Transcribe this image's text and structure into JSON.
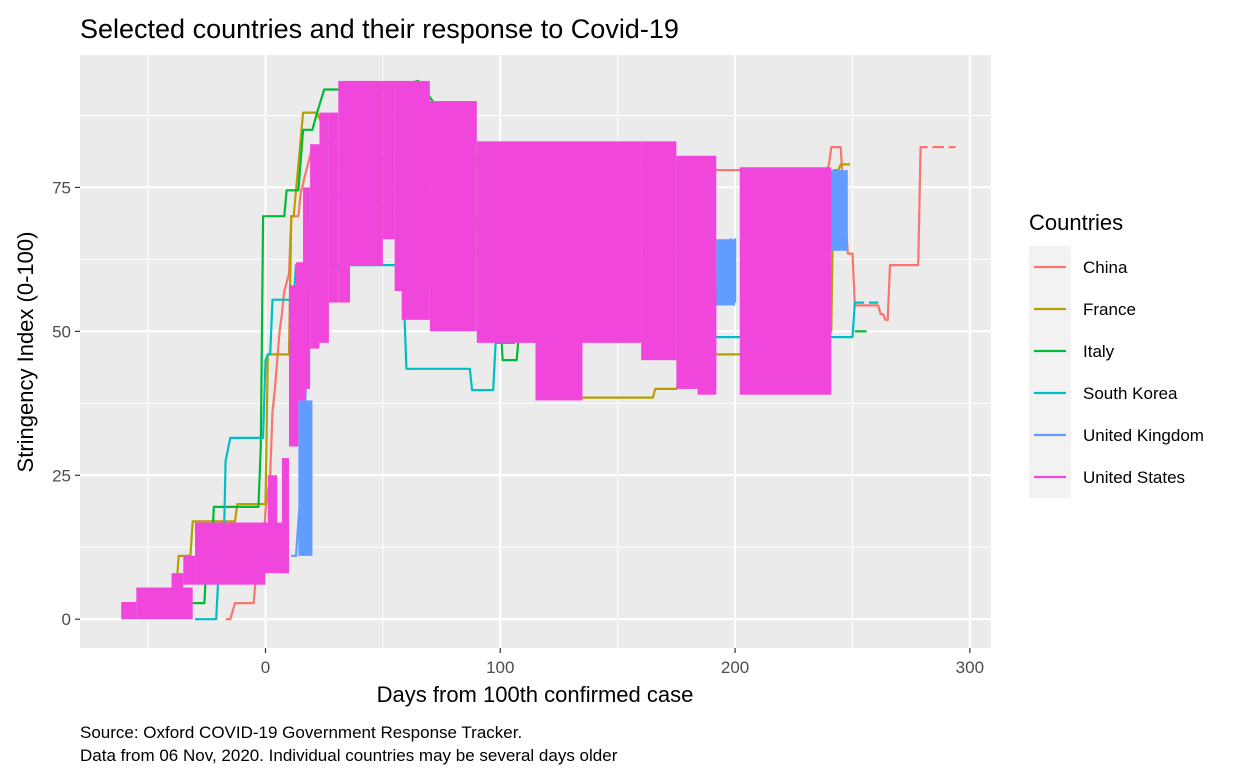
{
  "chart_data": {
    "type": "line",
    "title": "Selected countries and their response to Covid-19",
    "xlabel": "Days from 100th confirmed case",
    "ylabel": "Stringency Index (0-100)",
    "xlim": [
      -79,
      309
    ],
    "ylim": [
      -5,
      98
    ],
    "x_ticks": [
      0,
      100,
      200,
      300
    ],
    "x_tick_labels": [
      "0",
      "100",
      "200",
      "300"
    ],
    "y_ticks": [
      0,
      25,
      50,
      75
    ],
    "y_tick_labels": [
      "0",
      "25",
      "50",
      "75"
    ],
    "grid": true,
    "legend": {
      "title": "Countries",
      "position": "right"
    },
    "caption": [
      "Source: Oxford COVID-19 Government Response Tracker.",
      "Data from 06 Nov, 2020. Individual countries may be several days older"
    ],
    "series": [
      {
        "name": "China",
        "color": "#F8766D",
        "segments": [
          [
            [
              -17,
              0
            ],
            [
              -15,
              0
            ],
            [
              -13,
              2.8
            ],
            [
              -5,
              2.8
            ],
            [
              -4,
              8
            ],
            [
              -1,
              10
            ],
            [
              0,
              19
            ],
            [
              2,
              25
            ],
            [
              3,
              36
            ],
            [
              4,
              40
            ],
            [
              5,
              45
            ],
            [
              6,
              50
            ],
            [
              7,
              53
            ],
            [
              8,
              57
            ],
            [
              10,
              60
            ],
            [
              11,
              70
            ],
            [
              14,
              70
            ],
            [
              15,
              74
            ],
            [
              18,
              79
            ],
            [
              20,
              82
            ],
            [
              22,
              82
            ],
            [
              24,
              79
            ],
            [
              190,
              79
            ],
            [
              191,
              78
            ],
            [
              239,
              78
            ],
            [
              240,
              79
            ],
            [
              241,
              82
            ],
            [
              245,
              82
            ],
            [
              246,
              75
            ],
            [
              247,
              70
            ],
            [
              248,
              63.5
            ],
            [
              250,
              63.5
            ],
            [
              251,
              54.5
            ],
            [
              261,
              54.5
            ],
            [
              262,
              53
            ],
            [
              263,
              53
            ],
            [
              264,
              52
            ],
            [
              265,
              52
            ],
            [
              266,
              61.5
            ],
            [
              278,
              61.5
            ],
            [
              279,
              82
            ],
            [
              282,
              82
            ]
          ],
          [
            [
              284,
              82
            ],
            [
              289,
              82
            ]
          ],
          [
            [
              291,
              82
            ],
            [
              294,
              82
            ]
          ]
        ]
      },
      {
        "name": "France",
        "color": "#B79F00",
        "segments": [
          [
            [
              -38,
              5
            ],
            [
              -37,
              11
            ],
            [
              -32,
              11
            ],
            [
              -31,
              17
            ],
            [
              -13,
              17
            ],
            [
              -12,
              20
            ],
            [
              0,
              20
            ],
            [
              1,
              46
            ],
            [
              10,
              46
            ],
            [
              11,
              70
            ],
            [
              12,
              70
            ],
            [
              16,
              88
            ],
            [
              22,
              88
            ],
            [
              30,
              80
            ],
            [
              120,
              80
            ],
            [
              118,
              41
            ],
            [
              125,
              41
            ],
            [
              126,
              38.5
            ],
            [
              165,
              38.5
            ],
            [
              166,
              40
            ],
            [
              175,
              40
            ],
            [
              176,
              41
            ],
            [
              190,
              41
            ],
            [
              191,
              46
            ],
            [
              238,
              46
            ],
            [
              239,
              50
            ],
            [
              241,
              50
            ],
            [
              242,
              78
            ],
            [
              244,
              78
            ],
            [
              245,
              79
            ],
            [
              249,
              79
            ]
          ]
        ]
      },
      {
        "name": "Italy",
        "color": "#00BA38",
        "segments": [
          [
            [
              -31,
              2.8
            ],
            [
              -26,
              2.8
            ],
            [
              -25,
              11
            ],
            [
              -23,
              11
            ],
            [
              -22,
              19.5
            ],
            [
              -3,
              19.5
            ],
            [
              -2,
              30
            ],
            [
              -1,
              70
            ],
            [
              8,
              70
            ],
            [
              9,
              74.5
            ],
            [
              14,
              74.5
            ],
            [
              16,
              85
            ],
            [
              20,
              85
            ],
            [
              22,
              88
            ],
            [
              25,
              92
            ],
            [
              50,
              92
            ],
            [
              65,
              93.5
            ],
            [
              80,
              85
            ],
            [
              100,
              53
            ],
            [
              101,
              45
            ],
            [
              107,
              45
            ],
            [
              108,
              50
            ],
            [
              110,
              50
            ]
          ],
          [
            [
              251,
              50
            ],
            [
              256,
              50
            ]
          ]
        ]
      },
      {
        "name": "South Korea",
        "color": "#00BFC4",
        "segments": [
          [
            [
              -30,
              0
            ],
            [
              -21,
              0
            ],
            [
              -20,
              8
            ],
            [
              -18,
              8
            ],
            [
              -17,
              27.5
            ],
            [
              -15,
              31.5
            ],
            [
              -1,
              31.5
            ],
            [
              0,
              45
            ],
            [
              1,
              46
            ],
            [
              2,
              46
            ],
            [
              3,
              55.5
            ],
            [
              12,
              55.5
            ],
            [
              13,
              61.5
            ],
            [
              22,
              61.5
            ],
            [
              58,
              61.5
            ],
            [
              59,
              55
            ],
            [
              60,
              43.5
            ],
            [
              87,
              43.5
            ],
            [
              88,
              39.8
            ],
            [
              97,
              39.8
            ],
            [
              98,
              48
            ],
            [
              106,
              48
            ],
            [
              107,
              49
            ],
            [
              250,
              49
            ],
            [
              251,
              55
            ],
            [
              255,
              55
            ]
          ],
          [
            [
              257,
              55
            ],
            [
              261,
              55
            ]
          ]
        ]
      },
      {
        "name": "United Kingdom",
        "color": "#619CFF",
        "segments": [
          [
            [
              11,
              11
            ],
            [
              13,
              11
            ],
            [
              14,
              17
            ],
            [
              15,
              22
            ],
            [
              16,
              30
            ],
            [
              17,
              38
            ],
            [
              18,
              50
            ],
            [
              20,
              74
            ],
            [
              34,
              74
            ],
            [
              60,
              70
            ],
            [
              68,
              70
            ],
            [
              70,
              64
            ],
            [
              190,
              64
            ],
            [
              191,
              55
            ],
            [
              198,
              66
            ],
            [
              199,
              55
            ],
            [
              200,
              66
            ],
            [
              200,
              55
            ]
          ]
        ],
        "bands": [
          {
            "x0": 14,
            "x1": 20,
            "y0": 11,
            "y1": 38
          },
          {
            "x0": 192,
            "x1": 200,
            "y0": 54.5,
            "y1": 66
          },
          {
            "x0": 238,
            "x1": 248,
            "y0": 64,
            "y1": 78
          }
        ]
      },
      {
        "name": "United States",
        "color": "#F046DC",
        "segments": [
          [
            [
              -61,
              0
            ],
            [
              -61,
              2.8
            ],
            [
              -55,
              2.8
            ]
          ]
        ],
        "bands": [
          {
            "x0": -61,
            "x1": -55,
            "y0": 0,
            "y1": 2.8
          },
          {
            "x0": -55,
            "x1": -31,
            "y0": 0,
            "y1": 5.5
          },
          {
            "x0": -40,
            "x1": -35,
            "y0": 5,
            "y1": 8
          },
          {
            "x0": -35,
            "x1": -30,
            "y0": 6,
            "y1": 11
          },
          {
            "x0": -30,
            "x1": 0,
            "y0": 6,
            "y1": 16.8
          },
          {
            "x0": -2,
            "x1": 10,
            "y0": 8,
            "y1": 16.8
          },
          {
            "x0": 1,
            "x1": 5,
            "y0": 12,
            "y1": 25
          },
          {
            "x0": 7,
            "x1": 10,
            "y0": 8,
            "y1": 28
          },
          {
            "x0": 10,
            "x1": 14,
            "y0": 30,
            "y1": 58
          },
          {
            "x0": 13,
            "x1": 17,
            "y0": 38,
            "y1": 62
          },
          {
            "x0": 16,
            "x1": 19,
            "y0": 40,
            "y1": 75
          },
          {
            "x0": 19,
            "x1": 23,
            "y0": 47,
            "y1": 82.5
          },
          {
            "x0": 23,
            "x1": 27,
            "y0": 48,
            "y1": 88
          },
          {
            "x0": 27,
            "x1": 31,
            "y0": 55,
            "y1": 88
          },
          {
            "x0": 31,
            "x1": 36,
            "y0": 55,
            "y1": 93.5
          },
          {
            "x0": 36,
            "x1": 50,
            "y0": 61.5,
            "y1": 93.5
          },
          {
            "x0": 50,
            "x1": 55,
            "y0": 66,
            "y1": 93.5
          },
          {
            "x0": 55,
            "x1": 70,
            "y0": 57,
            "y1": 93.5
          },
          {
            "x0": 58,
            "x1": 70,
            "y0": 52,
            "y1": 90
          },
          {
            "x0": 70,
            "x1": 90,
            "y0": 50,
            "y1": 90
          },
          {
            "x0": 90,
            "x1": 160,
            "y0": 48,
            "y1": 83
          },
          {
            "x0": 115,
            "x1": 135,
            "y0": 38,
            "y1": 50
          },
          {
            "x0": 160,
            "x1": 175,
            "y0": 45,
            "y1": 83
          },
          {
            "x0": 175,
            "x1": 192,
            "y0": 40,
            "y1": 80.5
          },
          {
            "x0": 184,
            "x1": 192,
            "y0": 39,
            "y1": 60
          },
          {
            "x0": 202,
            "x1": 241,
            "y0": 39,
            "y1": 78.5
          },
          {
            "x0": 210,
            "x1": 240,
            "y0": 40,
            "y1": 78
          }
        ]
      }
    ]
  }
}
